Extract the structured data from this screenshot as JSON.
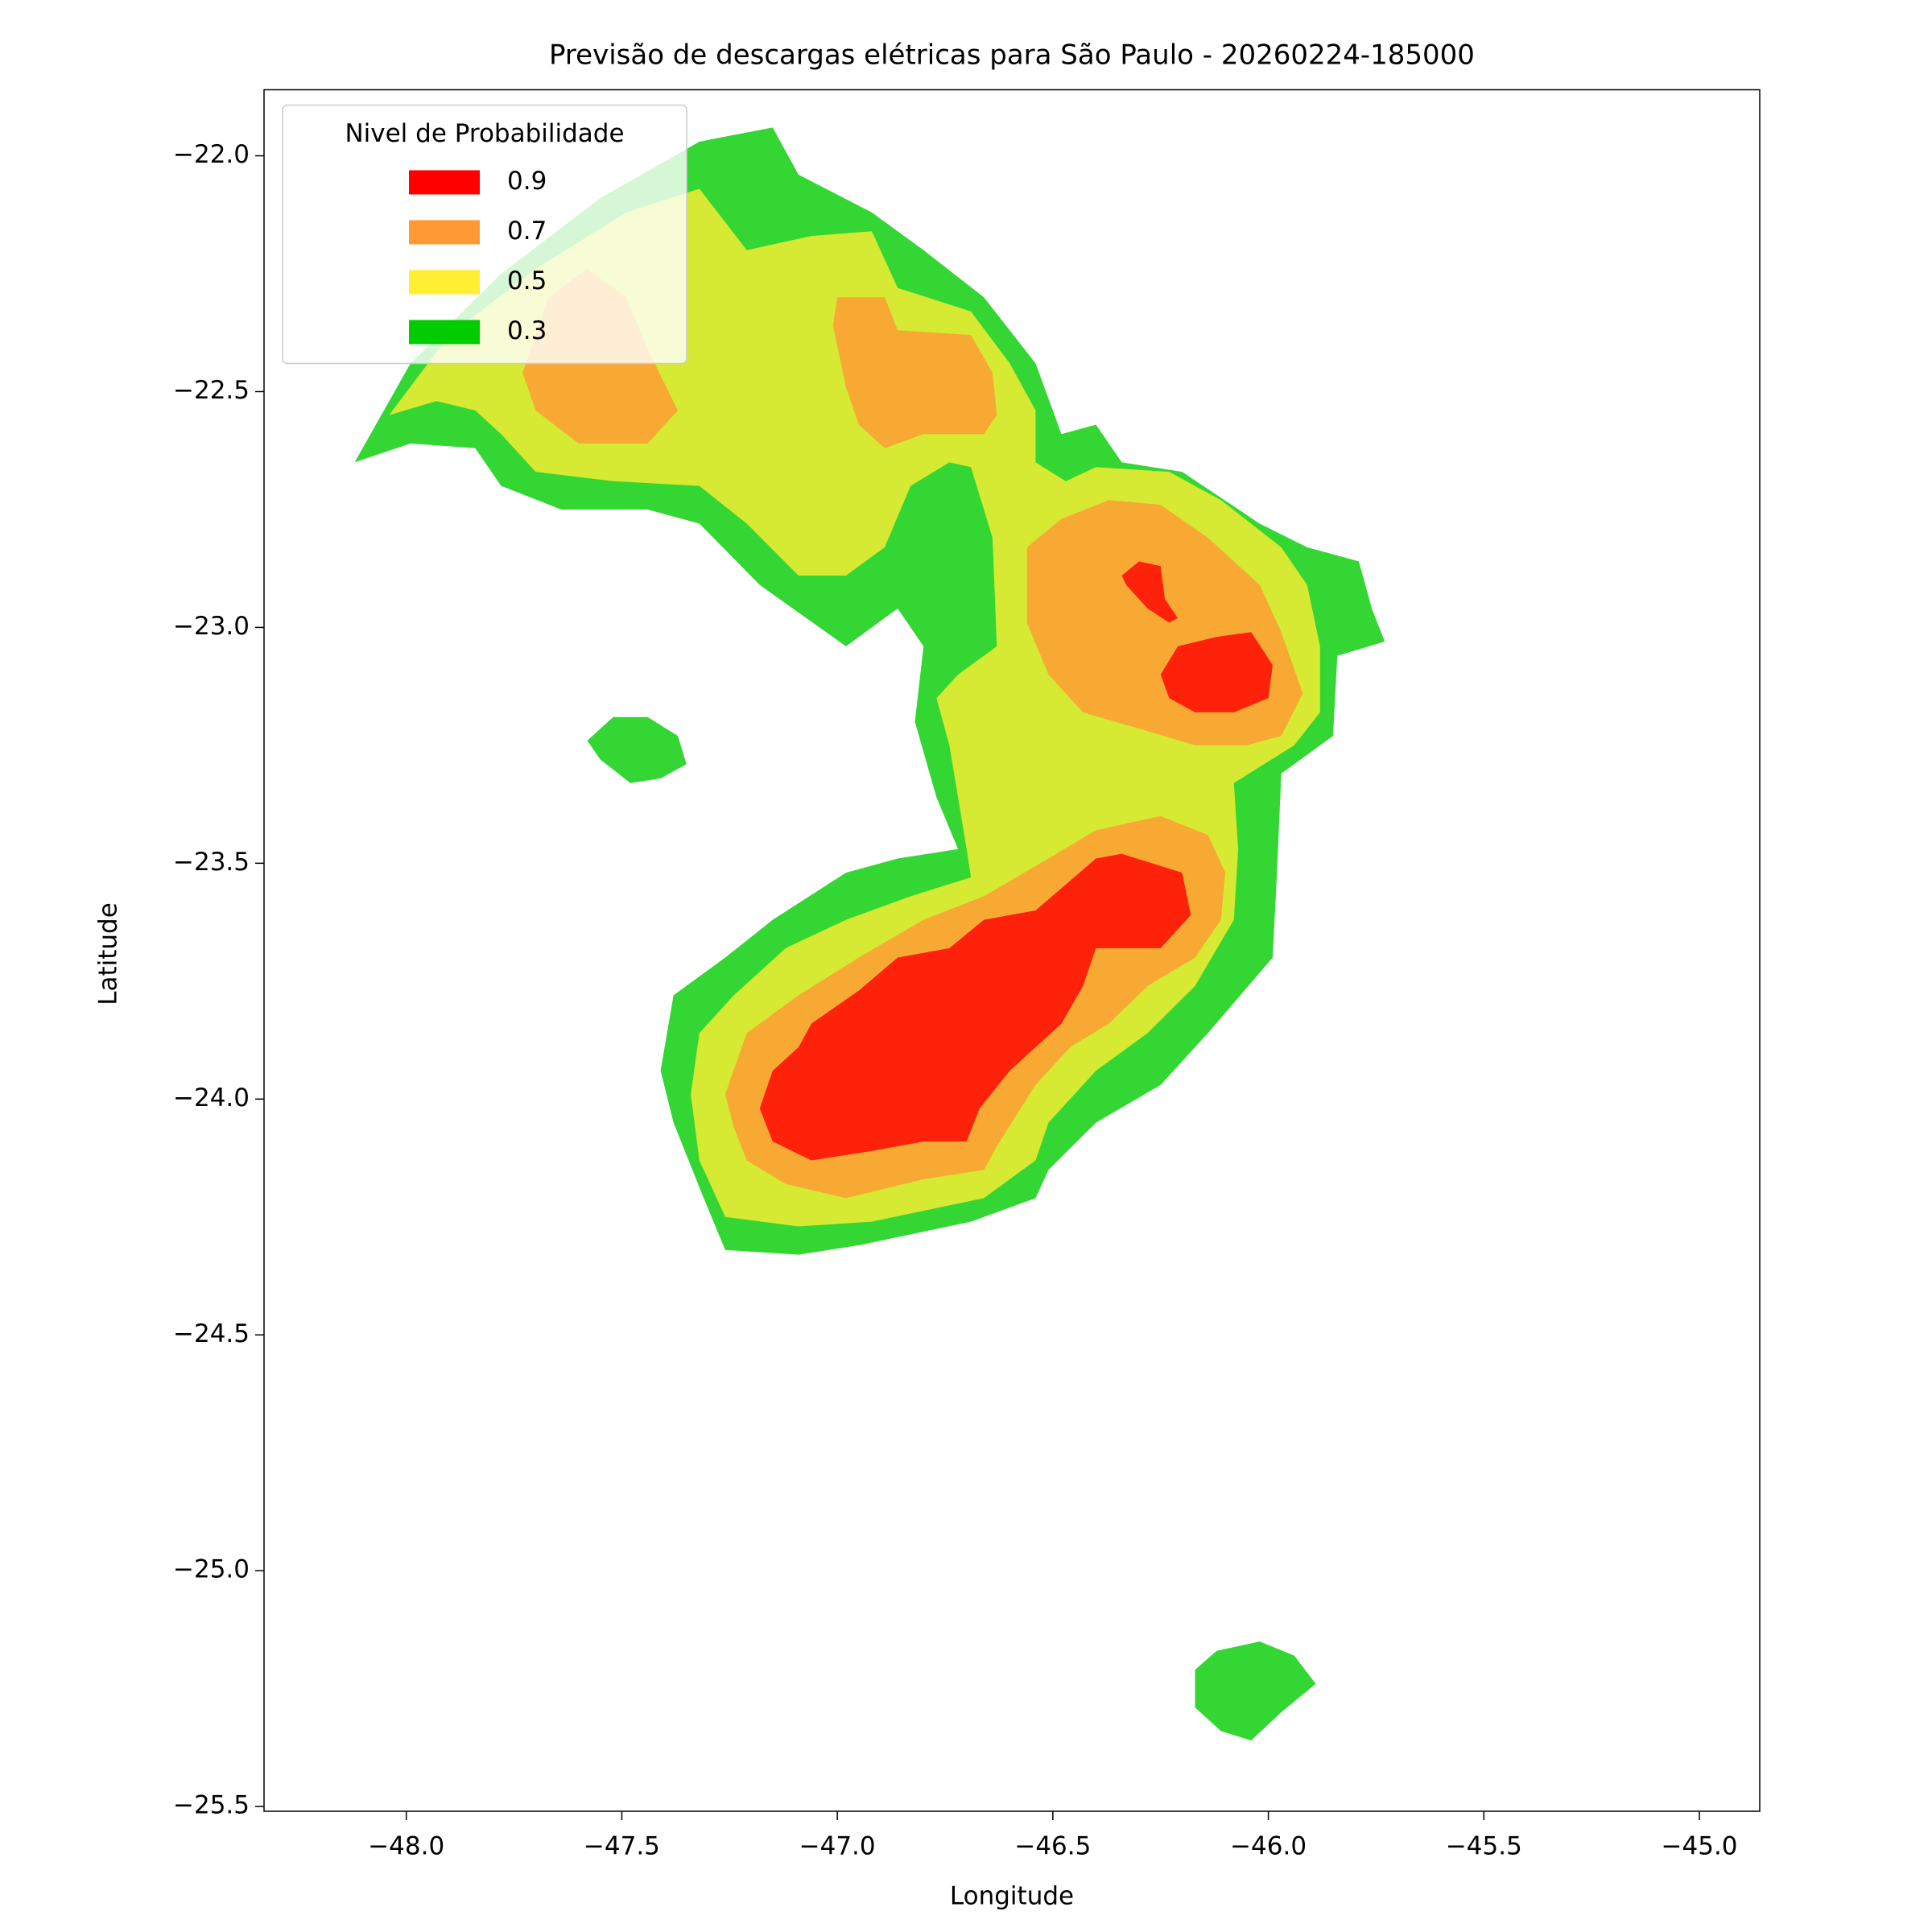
{
  "chart_data": {
    "type": "contour",
    "title": "Previsão de descargas elétricas para São Paulo - 20260224-185000",
    "x_label": "Longitude",
    "y_label": "Latitude",
    "xlim": [
      -48.33,
      -44.86
    ],
    "ylim": [
      -25.51,
      -21.86
    ],
    "xticks": [
      {
        "value": -48,
        "label": "−48.0"
      },
      {
        "value": -47.5,
        "label": "−47.5"
      },
      {
        "value": -47,
        "label": "−47.0"
      },
      {
        "value": -46.5,
        "label": "−46.5"
      },
      {
        "value": -46,
        "label": "−46.0"
      },
      {
        "value": -45.5,
        "label": "−45.5"
      },
      {
        "value": -45,
        "label": "−45.0"
      }
    ],
    "yticks": [
      {
        "value": -22,
        "label": "−22.0"
      },
      {
        "value": -22.5,
        "label": "−22.5"
      },
      {
        "value": -23,
        "label": "−23.0"
      },
      {
        "value": -23.5,
        "label": "−23.5"
      },
      {
        "value": -24,
        "label": "−24.0"
      },
      {
        "value": -24.5,
        "label": "−24.5"
      },
      {
        "value": -25,
        "label": "−25.0"
      },
      {
        "value": -25.5,
        "label": "−25.5"
      }
    ],
    "alpha": 0.8,
    "legend_title": "Nivel de Probabilidade",
    "legend_loc": "upper left",
    "series": [
      {
        "name": "0.9",
        "color": "#ff0000",
        "polygons": [
          [
            [
              -46.34,
              -22.89
            ],
            [
              -46.3,
              -22.86
            ],
            [
              -46.25,
              -22.87
            ],
            [
              -46.24,
              -22.94
            ],
            [
              -46.21,
              -22.98
            ],
            [
              -46.23,
              -22.99
            ],
            [
              -46.28,
              -22.96
            ],
            [
              -46.33,
              -22.91
            ]
          ],
          [
            [
              -46.25,
              -23.1
            ],
            [
              -46.21,
              -23.04
            ],
            [
              -46.12,
              -23.02
            ],
            [
              -46.04,
              -23.01
            ],
            [
              -45.99,
              -23.08
            ],
            [
              -46.0,
              -23.15
            ],
            [
              -46.08,
              -23.18
            ],
            [
              -46.17,
              -23.18
            ],
            [
              -46.23,
              -23.15
            ]
          ],
          [
            [
              -47.18,
              -24.02
            ],
            [
              -47.15,
              -23.94
            ],
            [
              -47.09,
              -23.89
            ],
            [
              -47.06,
              -23.84
            ],
            [
              -46.95,
              -23.77
            ],
            [
              -46.86,
              -23.7
            ],
            [
              -46.74,
              -23.68
            ],
            [
              -46.66,
              -23.62
            ],
            [
              -46.54,
              -23.6
            ],
            [
              -46.4,
              -23.49
            ],
            [
              -46.34,
              -23.48
            ],
            [
              -46.2,
              -23.52
            ],
            [
              -46.18,
              -23.61
            ],
            [
              -46.25,
              -23.68
            ],
            [
              -46.4,
              -23.68
            ],
            [
              -46.43,
              -23.76
            ],
            [
              -46.48,
              -23.84
            ],
            [
              -46.6,
              -23.94
            ],
            [
              -46.67,
              -24.02
            ],
            [
              -46.7,
              -24.09
            ],
            [
              -46.8,
              -24.09
            ],
            [
              -46.92,
              -24.11
            ],
            [
              -47.06,
              -24.13
            ],
            [
              -47.15,
              -24.09
            ]
          ]
        ]
      },
      {
        "name": "0.7",
        "color": "#ff9933",
        "polygons": [
          [
            [
              -47.73,
              -22.46
            ],
            [
              -47.67,
              -22.3
            ],
            [
              -47.58,
              -22.24
            ],
            [
              -47.49,
              -22.3
            ],
            [
              -47.44,
              -22.41
            ],
            [
              -47.37,
              -22.54
            ],
            [
              -47.44,
              -22.61
            ],
            [
              -47.6,
              -22.61
            ],
            [
              -47.7,
              -22.54
            ]
          ],
          [
            [
              -47.0,
              -22.3
            ],
            [
              -46.89,
              -22.3
            ],
            [
              -46.86,
              -22.37
            ],
            [
              -46.69,
              -22.38
            ],
            [
              -46.64,
              -22.46
            ],
            [
              -46.63,
              -22.55
            ],
            [
              -46.66,
              -22.59
            ],
            [
              -46.8,
              -22.59
            ],
            [
              -46.89,
              -22.62
            ],
            [
              -46.95,
              -22.57
            ],
            [
              -46.98,
              -22.49
            ],
            [
              -47.01,
              -22.36
            ]
          ],
          [
            [
              -46.56,
              -22.83
            ],
            [
              -46.48,
              -22.77
            ],
            [
              -46.37,
              -22.73
            ],
            [
              -46.25,
              -22.74
            ],
            [
              -46.14,
              -22.81
            ],
            [
              -46.02,
              -22.91
            ],
            [
              -45.97,
              -23.01
            ],
            [
              -45.92,
              -23.14
            ],
            [
              -45.97,
              -23.23
            ],
            [
              -46.05,
              -23.25
            ],
            [
              -46.17,
              -23.25
            ],
            [
              -46.28,
              -23.22
            ],
            [
              -46.43,
              -23.18
            ],
            [
              -46.51,
              -23.1
            ],
            [
              -46.56,
              -22.99
            ]
          ],
          [
            [
              -47.26,
              -23.99
            ],
            [
              -47.21,
              -23.86
            ],
            [
              -47.09,
              -23.78
            ],
            [
              -46.95,
              -23.7
            ],
            [
              -46.8,
              -23.62
            ],
            [
              -46.66,
              -23.57
            ],
            [
              -46.51,
              -23.49
            ],
            [
              -46.4,
              -23.43
            ],
            [
              -46.25,
              -23.4
            ],
            [
              -46.14,
              -23.44
            ],
            [
              -46.1,
              -23.52
            ],
            [
              -46.11,
              -23.62
            ],
            [
              -46.17,
              -23.7
            ],
            [
              -46.28,
              -23.76
            ],
            [
              -46.37,
              -23.84
            ],
            [
              -46.46,
              -23.89
            ],
            [
              -46.54,
              -23.97
            ],
            [
              -46.63,
              -24.1
            ],
            [
              -46.66,
              -24.15
            ],
            [
              -46.8,
              -24.17
            ],
            [
              -46.98,
              -24.21
            ],
            [
              -47.12,
              -24.18
            ],
            [
              -47.21,
              -24.13
            ],
            [
              -47.24,
              -24.06
            ]
          ]
        ]
      },
      {
        "name": "0.5",
        "color": "#ffee33",
        "polygons": [
          [
            [
              -48.04,
              -22.55
            ],
            [
              -47.9,
              -22.38
            ],
            [
              -47.7,
              -22.24
            ],
            [
              -47.49,
              -22.12
            ],
            [
              -47.32,
              -22.07
            ],
            [
              -47.21,
              -22.2
            ],
            [
              -47.06,
              -22.17
            ],
            [
              -46.92,
              -22.16
            ],
            [
              -46.86,
              -22.28
            ],
            [
              -46.69,
              -22.33
            ],
            [
              -46.6,
              -22.44
            ],
            [
              -46.54,
              -22.54
            ],
            [
              -46.54,
              -22.65
            ],
            [
              -46.47,
              -22.69
            ],
            [
              -46.4,
              -22.66
            ],
            [
              -46.23,
              -22.67
            ],
            [
              -46.11,
              -22.73
            ],
            [
              -45.97,
              -22.83
            ],
            [
              -45.91,
              -22.91
            ],
            [
              -45.88,
              -23.04
            ],
            [
              -45.88,
              -23.18
            ],
            [
              -45.94,
              -23.25
            ],
            [
              -46.08,
              -23.33
            ],
            [
              -46.07,
              -23.47
            ],
            [
              -46.08,
              -23.62
            ],
            [
              -46.17,
              -23.76
            ],
            [
              -46.28,
              -23.86
            ],
            [
              -46.4,
              -23.94
            ],
            [
              -46.51,
              -24.05
            ],
            [
              -46.54,
              -24.13
            ],
            [
              -46.66,
              -24.21
            ],
            [
              -46.92,
              -24.26
            ],
            [
              -47.09,
              -24.27
            ],
            [
              -47.26,
              -24.25
            ],
            [
              -47.32,
              -24.13
            ],
            [
              -47.34,
              -23.99
            ],
            [
              -47.32,
              -23.86
            ],
            [
              -47.24,
              -23.78
            ],
            [
              -47.12,
              -23.68
            ],
            [
              -46.98,
              -23.62
            ],
            [
              -46.83,
              -23.57
            ],
            [
              -46.69,
              -23.53
            ],
            [
              -46.7,
              -23.47
            ],
            [
              -46.74,
              -23.25
            ],
            [
              -46.77,
              -23.15
            ],
            [
              -46.72,
              -23.1
            ],
            [
              -46.63,
              -23.04
            ],
            [
              -46.64,
              -22.81
            ],
            [
              -46.69,
              -22.66
            ],
            [
              -46.74,
              -22.65
            ],
            [
              -46.83,
              -22.7
            ],
            [
              -46.89,
              -22.83
            ],
            [
              -46.98,
              -22.89
            ],
            [
              -47.09,
              -22.89
            ],
            [
              -47.21,
              -22.78
            ],
            [
              -47.32,
              -22.7
            ],
            [
              -47.52,
              -22.69
            ],
            [
              -47.7,
              -22.67
            ],
            [
              -47.78,
              -22.59
            ],
            [
              -47.84,
              -22.54
            ],
            [
              -47.93,
              -22.52
            ]
          ]
        ]
      },
      {
        "name": "0.3",
        "color": "#00cc00",
        "polygons": [
          [
            [
              -48.12,
              -22.65
            ],
            [
              -47.99,
              -22.44
            ],
            [
              -47.78,
              -22.25
            ],
            [
              -47.55,
              -22.09
            ],
            [
              -47.32,
              -21.97
            ],
            [
              -47.15,
              -21.94
            ],
            [
              -47.09,
              -22.04
            ],
            [
              -46.92,
              -22.12
            ],
            [
              -46.8,
              -22.2
            ],
            [
              -46.66,
              -22.3
            ],
            [
              -46.54,
              -22.44
            ],
            [
              -46.48,
              -22.59
            ],
            [
              -46.4,
              -22.57
            ],
            [
              -46.34,
              -22.65
            ],
            [
              -46.2,
              -22.67
            ],
            [
              -46.02,
              -22.78
            ],
            [
              -45.91,
              -22.83
            ],
            [
              -45.79,
              -22.86
            ],
            [
              -45.76,
              -22.96
            ],
            [
              -45.73,
              -23.03
            ],
            [
              -45.84,
              -23.06
            ],
            [
              -45.85,
              -23.23
            ],
            [
              -45.97,
              -23.31
            ],
            [
              -45.98,
              -23.52
            ],
            [
              -45.99,
              -23.7
            ],
            [
              -46.14,
              -23.86
            ],
            [
              -46.25,
              -23.97
            ],
            [
              -46.4,
              -24.05
            ],
            [
              -46.51,
              -24.15
            ],
            [
              -46.54,
              -24.21
            ],
            [
              -46.69,
              -24.26
            ],
            [
              -46.95,
              -24.31
            ],
            [
              -47.09,
              -24.33
            ],
            [
              -47.26,
              -24.32
            ],
            [
              -47.31,
              -24.21
            ],
            [
              -47.38,
              -24.05
            ],
            [
              -47.41,
              -23.94
            ],
            [
              -47.38,
              -23.78
            ],
            [
              -47.26,
              -23.7
            ],
            [
              -47.15,
              -23.62
            ],
            [
              -46.98,
              -23.52
            ],
            [
              -46.86,
              -23.49
            ],
            [
              -46.72,
              -23.47
            ],
            [
              -46.77,
              -23.36
            ],
            [
              -46.82,
              -23.2
            ],
            [
              -46.8,
              -23.04
            ],
            [
              -46.86,
              -22.96
            ],
            [
              -46.98,
              -23.04
            ],
            [
              -47.18,
              -22.91
            ],
            [
              -47.32,
              -22.78
            ],
            [
              -47.44,
              -22.75
            ],
            [
              -47.64,
              -22.75
            ],
            [
              -47.78,
              -22.7
            ],
            [
              -47.84,
              -22.62
            ],
            [
              -47.99,
              -22.61
            ]
          ],
          [
            [
              -47.58,
              -23.24
            ],
            [
              -47.52,
              -23.19
            ],
            [
              -47.44,
              -23.19
            ],
            [
              -47.37,
              -23.23
            ],
            [
              -47.35,
              -23.29
            ],
            [
              -47.41,
              -23.32
            ],
            [
              -47.48,
              -23.33
            ],
            [
              -47.55,
              -23.28
            ]
          ],
          [
            [
              -46.17,
              -25.21
            ],
            [
              -46.12,
              -25.17
            ],
            [
              -46.02,
              -25.15
            ],
            [
              -45.94,
              -25.18
            ],
            [
              -45.89,
              -25.24
            ],
            [
              -45.97,
              -25.3
            ],
            [
              -46.04,
              -25.36
            ],
            [
              -46.11,
              -25.34
            ],
            [
              -46.17,
              -25.29
            ]
          ]
        ]
      }
    ]
  }
}
